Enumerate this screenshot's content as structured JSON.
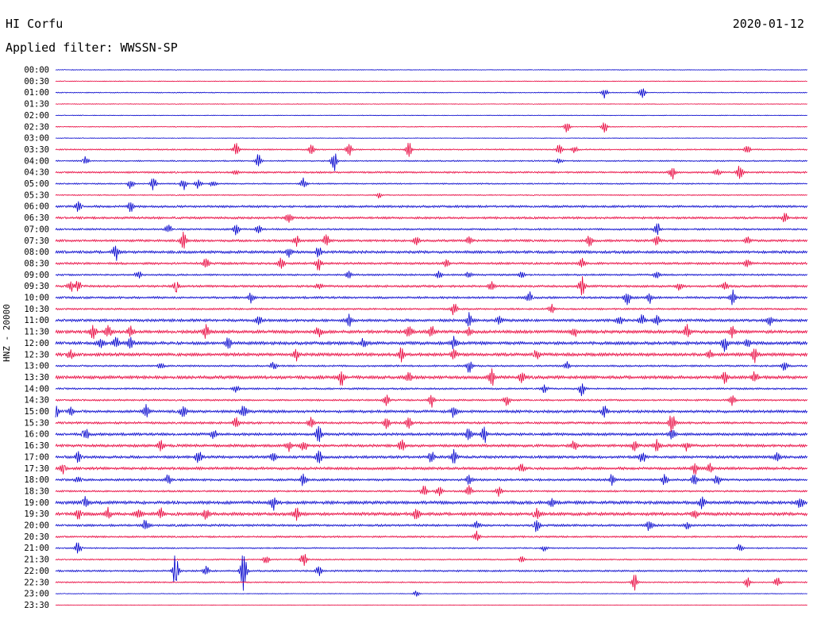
{
  "header": {
    "station": "HI Corfu",
    "date": "2020-01-12",
    "filter_label": "Applied filter: WWSSN-SP",
    "channel_label": "HNZ - 20000"
  },
  "colors": {
    "even_trace": "#0000cc",
    "odd_trace": "#e8003a"
  },
  "chart_data": {
    "type": "line",
    "title": "HI Corfu",
    "subtitle": "Applied filter: WWSSN-SP",
    "ylabel": "HNZ - 20000",
    "xlabel": "",
    "grid": false,
    "trace_colors": [
      "#0000cc",
      "#e8003a"
    ],
    "rows": [
      {
        "time": "00:00",
        "level": 0.3,
        "events": []
      },
      {
        "time": "00:30",
        "level": 0.3,
        "events": []
      },
      {
        "time": "01:00",
        "level": 0.4,
        "events": [
          [
            0.73,
            0.8
          ],
          [
            0.78,
            1.0
          ]
        ]
      },
      {
        "time": "01:30",
        "level": 0.3,
        "events": []
      },
      {
        "time": "02:00",
        "level": 0.3,
        "events": []
      },
      {
        "time": "02:30",
        "level": 0.4,
        "events": [
          [
            0.68,
            0.8
          ],
          [
            0.73,
            0.9
          ]
        ]
      },
      {
        "time": "03:00",
        "level": 0.3,
        "events": []
      },
      {
        "time": "03:30",
        "level": 0.6,
        "events": [
          [
            0.24,
            1.0
          ],
          [
            0.34,
            0.8
          ],
          [
            0.39,
            1.0
          ],
          [
            0.47,
            1.0
          ],
          [
            0.67,
            0.8
          ],
          [
            0.69,
            0.6
          ],
          [
            0.92,
            0.6
          ]
        ]
      },
      {
        "time": "04:00",
        "level": 0.6,
        "events": [
          [
            0.04,
            0.8
          ],
          [
            0.27,
            1.0
          ],
          [
            0.37,
            1.8
          ],
          [
            0.67,
            0.4
          ]
        ]
      },
      {
        "time": "04:30",
        "level": 0.8,
        "events": [
          [
            0.24,
            0.3
          ],
          [
            0.82,
            1.0
          ],
          [
            0.88,
            0.6
          ],
          [
            0.91,
            1.2
          ]
        ]
      },
      {
        "time": "05:00",
        "level": 0.6,
        "events": [
          [
            0.1,
            0.8
          ],
          [
            0.13,
            1.0
          ],
          [
            0.17,
            1.0
          ],
          [
            0.19,
            0.9
          ],
          [
            0.21,
            0.6
          ],
          [
            0.33,
            0.8
          ]
        ]
      },
      {
        "time": "05:30",
        "level": 0.5,
        "events": [
          [
            0.43,
            0.4
          ]
        ]
      },
      {
        "time": "06:00",
        "level": 1.0,
        "events": [
          [
            0.03,
            0.8
          ],
          [
            0.1,
            0.8
          ]
        ]
      },
      {
        "time": "06:30",
        "level": 1.0,
        "events": [
          [
            0.31,
            1.0
          ],
          [
            0.97,
            0.8
          ]
        ]
      },
      {
        "time": "07:00",
        "level": 0.8,
        "events": [
          [
            0.15,
            0.8
          ],
          [
            0.24,
            0.8
          ],
          [
            0.27,
            0.6
          ],
          [
            0.8,
            1.0
          ]
        ]
      },
      {
        "time": "07:30",
        "level": 1.0,
        "events": [
          [
            0.17,
            1.2
          ],
          [
            0.32,
            0.8
          ],
          [
            0.36,
            1.0
          ],
          [
            0.48,
            0.6
          ],
          [
            0.55,
            0.6
          ],
          [
            0.71,
            0.8
          ],
          [
            0.8,
            0.8
          ],
          [
            0.92,
            0.6
          ]
        ]
      },
      {
        "time": "08:00",
        "level": 1.2,
        "events": [
          [
            0.08,
            1.2
          ],
          [
            0.31,
            0.8
          ],
          [
            0.35,
            0.8
          ]
        ]
      },
      {
        "time": "08:30",
        "level": 1.0,
        "events": [
          [
            0.2,
            0.8
          ],
          [
            0.3,
            1.0
          ],
          [
            0.35,
            1.0
          ],
          [
            0.52,
            0.6
          ],
          [
            0.7,
            0.8
          ],
          [
            0.92,
            0.8
          ]
        ]
      },
      {
        "time": "09:00",
        "level": 0.8,
        "events": [
          [
            0.11,
            0.6
          ],
          [
            0.39,
            0.6
          ],
          [
            0.51,
            0.6
          ],
          [
            0.55,
            0.6
          ],
          [
            0.62,
            0.6
          ],
          [
            0.8,
            0.6
          ]
        ]
      },
      {
        "time": "09:30",
        "level": 1.0,
        "events": [
          [
            0.02,
            0.8
          ],
          [
            0.03,
            0.8
          ],
          [
            0.16,
            0.8
          ],
          [
            0.35,
            0.6
          ],
          [
            0.58,
            0.8
          ],
          [
            0.7,
            1.4
          ],
          [
            0.83,
            0.6
          ],
          [
            0.89,
            0.6
          ]
        ]
      },
      {
        "time": "10:00",
        "level": 1.0,
        "events": [
          [
            0.26,
            0.8
          ],
          [
            0.63,
            0.8
          ],
          [
            0.76,
            1.2
          ],
          [
            0.79,
            0.8
          ],
          [
            0.9,
            1.2
          ]
        ]
      },
      {
        "time": "10:30",
        "level": 0.8,
        "events": [
          [
            0.53,
            1.0
          ],
          [
            0.66,
            0.8
          ]
        ]
      },
      {
        "time": "11:00",
        "level": 1.2,
        "events": [
          [
            0.27,
            0.8
          ],
          [
            0.39,
            1.0
          ],
          [
            0.55,
            1.0
          ],
          [
            0.59,
            0.8
          ],
          [
            0.75,
            0.8
          ],
          [
            0.78,
            0.8
          ],
          [
            0.8,
            0.8
          ],
          [
            0.95,
            0.8
          ]
        ]
      },
      {
        "time": "11:30",
        "level": 1.4,
        "events": [
          [
            0.05,
            1.0
          ],
          [
            0.07,
            1.0
          ],
          [
            0.1,
            0.8
          ],
          [
            0.2,
            1.0
          ],
          [
            0.35,
            0.8
          ],
          [
            0.47,
            1.0
          ],
          [
            0.5,
            0.8
          ],
          [
            0.55,
            0.8
          ],
          [
            0.69,
            0.8
          ],
          [
            0.84,
            1.0
          ],
          [
            0.9,
            0.8
          ]
        ]
      },
      {
        "time": "12:00",
        "level": 1.4,
        "events": [
          [
            0.06,
            1.0
          ],
          [
            0.08,
            1.0
          ],
          [
            0.1,
            1.0
          ],
          [
            0.23,
            0.8
          ],
          [
            0.41,
            0.8
          ],
          [
            0.53,
            1.0
          ],
          [
            0.89,
            1.2
          ],
          [
            0.92,
            0.8
          ]
        ]
      },
      {
        "time": "12:30",
        "level": 1.4,
        "events": [
          [
            0.02,
            0.8
          ],
          [
            0.32,
            0.8
          ],
          [
            0.46,
            1.0
          ],
          [
            0.53,
            0.8
          ],
          [
            0.64,
            0.8
          ],
          [
            0.87,
            0.6
          ],
          [
            0.93,
            1.0
          ]
        ]
      },
      {
        "time": "13:00",
        "level": 0.8,
        "events": [
          [
            0.14,
            0.6
          ],
          [
            0.29,
            0.8
          ],
          [
            0.55,
            1.0
          ],
          [
            0.68,
            0.6
          ],
          [
            0.97,
            0.8
          ]
        ]
      },
      {
        "time": "13:30",
        "level": 1.4,
        "events": [
          [
            0.38,
            1.2
          ],
          [
            0.47,
            0.8
          ],
          [
            0.58,
            1.2
          ],
          [
            0.62,
            1.0
          ],
          [
            0.89,
            0.8
          ],
          [
            0.93,
            0.8
          ]
        ]
      },
      {
        "time": "14:00",
        "level": 0.8,
        "events": [
          [
            0.24,
            0.6
          ],
          [
            0.65,
            0.6
          ],
          [
            0.7,
            1.0
          ]
        ]
      },
      {
        "time": "14:30",
        "level": 0.8,
        "events": [
          [
            0.44,
            0.8
          ],
          [
            0.5,
            1.0
          ],
          [
            0.6,
            0.8
          ],
          [
            0.9,
            0.8
          ]
        ]
      },
      {
        "time": "15:00",
        "level": 1.2,
        "events": [
          [
            0.0,
            1.2
          ],
          [
            0.02,
            0.6
          ],
          [
            0.12,
            1.0
          ],
          [
            0.17,
            1.0
          ],
          [
            0.25,
            1.2
          ],
          [
            0.53,
            1.0
          ],
          [
            0.73,
            0.8
          ]
        ]
      },
      {
        "time": "15:30",
        "level": 1.0,
        "events": [
          [
            0.24,
            0.8
          ],
          [
            0.34,
            1.0
          ],
          [
            0.44,
            0.8
          ],
          [
            0.47,
            0.8
          ],
          [
            0.82,
            1.8
          ]
        ]
      },
      {
        "time": "16:00",
        "level": 1.2,
        "events": [
          [
            0.04,
            1.0
          ],
          [
            0.21,
            0.8
          ],
          [
            0.35,
            1.2
          ],
          [
            0.55,
            1.2
          ],
          [
            0.57,
            1.4
          ],
          [
            0.82,
            0.8
          ]
        ]
      },
      {
        "time": "16:30",
        "level": 1.2,
        "events": [
          [
            0.14,
            0.8
          ],
          [
            0.31,
            0.8
          ],
          [
            0.33,
            1.0
          ],
          [
            0.46,
            1.0
          ],
          [
            0.69,
            0.8
          ],
          [
            0.77,
            0.8
          ],
          [
            0.8,
            0.8
          ],
          [
            0.84,
            0.8
          ]
        ]
      },
      {
        "time": "17:00",
        "level": 1.2,
        "events": [
          [
            0.03,
            0.8
          ],
          [
            0.19,
            1.0
          ],
          [
            0.29,
            0.8
          ],
          [
            0.35,
            1.0
          ],
          [
            0.5,
            0.8
          ],
          [
            0.53,
            1.0
          ],
          [
            0.78,
            1.0
          ],
          [
            0.96,
            0.8
          ]
        ]
      },
      {
        "time": "17:30",
        "level": 1.2,
        "events": [
          [
            0.01,
            0.8
          ],
          [
            0.62,
            0.6
          ],
          [
            0.85,
            1.0
          ],
          [
            0.87,
            0.8
          ]
        ]
      },
      {
        "time": "18:00",
        "level": 1.0,
        "events": [
          [
            0.03,
            0.6
          ],
          [
            0.15,
            0.8
          ],
          [
            0.33,
            1.0
          ],
          [
            0.55,
            0.8
          ],
          [
            0.74,
            0.8
          ],
          [
            0.81,
            0.8
          ],
          [
            0.85,
            1.0
          ],
          [
            0.88,
            0.8
          ]
        ]
      },
      {
        "time": "18:30",
        "level": 0.8,
        "events": [
          [
            0.49,
            1.0
          ],
          [
            0.51,
            0.8
          ],
          [
            0.55,
            0.8
          ],
          [
            0.59,
            0.8
          ]
        ]
      },
      {
        "time": "19:00",
        "level": 1.4,
        "events": [
          [
            0.04,
            0.8
          ],
          [
            0.29,
            1.0
          ],
          [
            0.66,
            0.6
          ],
          [
            0.86,
            0.8
          ],
          [
            0.99,
            1.2
          ]
        ]
      },
      {
        "time": "19:30",
        "level": 1.4,
        "events": [
          [
            0.03,
            0.8
          ],
          [
            0.07,
            0.8
          ],
          [
            0.11,
            0.8
          ],
          [
            0.14,
            0.8
          ],
          [
            0.2,
            0.8
          ],
          [
            0.32,
            1.0
          ],
          [
            0.48,
            0.8
          ],
          [
            0.64,
            0.8
          ],
          [
            0.85,
            0.8
          ]
        ]
      },
      {
        "time": "20:00",
        "level": 1.0,
        "events": [
          [
            0.12,
            1.0
          ],
          [
            0.56,
            0.8
          ],
          [
            0.64,
            1.0
          ],
          [
            0.79,
            1.0
          ],
          [
            0.84,
            0.6
          ]
        ]
      },
      {
        "time": "20:30",
        "level": 0.8,
        "events": [
          [
            0.56,
            1.0
          ]
        ]
      },
      {
        "time": "21:00",
        "level": 0.6,
        "events": [
          [
            0.03,
            1.0
          ],
          [
            0.65,
            0.4
          ],
          [
            0.91,
            0.6
          ]
        ]
      },
      {
        "time": "21:30",
        "level": 0.6,
        "events": [
          [
            0.28,
            0.8
          ],
          [
            0.33,
            1.0
          ],
          [
            0.62,
            0.4
          ]
        ]
      },
      {
        "time": "22:00",
        "level": 0.8,
        "events": [
          [
            0.16,
            3.0
          ],
          [
            0.2,
            0.8
          ],
          [
            0.25,
            3.0
          ],
          [
            0.35,
            0.8
          ]
        ]
      },
      {
        "time": "22:30",
        "level": 0.6,
        "events": [
          [
            0.77,
            1.2
          ],
          [
            0.92,
            0.8
          ],
          [
            0.96,
            0.8
          ]
        ]
      },
      {
        "time": "23:00",
        "level": 0.3,
        "events": [
          [
            0.48,
            0.4
          ]
        ]
      },
      {
        "time": "23:30",
        "level": 0.2,
        "events": []
      }
    ]
  }
}
